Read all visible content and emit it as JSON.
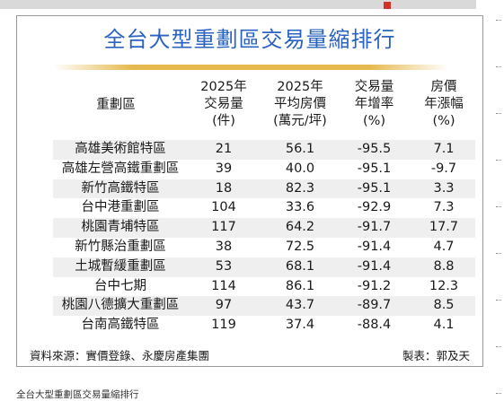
{
  "chart_data": {
    "type": "table",
    "title": "全台大型重劃區交易量縮排行",
    "columns": [
      [
        "重劃區"
      ],
      [
        "2025年",
        "交易量",
        "(件)"
      ],
      [
        "2025年",
        "平均房價",
        "(萬元/坪)"
      ],
      [
        "交易量",
        "年增率",
        "(%)"
      ],
      [
        "房價",
        "年漲幅",
        "(%)"
      ]
    ],
    "rows": [
      [
        "高雄美術館特區",
        "21",
        "56.1",
        "-95.5",
        "7.1"
      ],
      [
        "高雄左營高鐵重劃區",
        "39",
        "40.0",
        "-95.1",
        "-9.7"
      ],
      [
        "新竹高鐵特區",
        "18",
        "82.3",
        "-95.1",
        "3.3"
      ],
      [
        "台中港重劃區",
        "104",
        "33.6",
        "-92.9",
        "7.3"
      ],
      [
        "桃園青埔特區",
        "117",
        "64.2",
        "-91.7",
        "17.7"
      ],
      [
        "新竹縣治重劃區",
        "38",
        "72.5",
        "-91.4",
        "4.7"
      ],
      [
        "土城暫緩重劃區",
        "53",
        "68.1",
        "-91.4",
        "8.8"
      ],
      [
        "台中七期",
        "114",
        "86.1",
        "-91.2",
        "12.3"
      ],
      [
        "桃園八德擴大重劃區",
        "97",
        "43.7",
        "-89.7",
        "8.5"
      ],
      [
        "台南高鐵特區",
        "119",
        "37.4",
        "-88.4",
        "4.1"
      ]
    ],
    "source": "資料來源：實價登錄、永慶房產集團",
    "credit": "製表：郭及天"
  },
  "caption": "全台大型重劃區交易量縮排行",
  "colors": {
    "title": "#2b63c0",
    "rule": "#e6b94e",
    "stripe": "#efefef"
  }
}
